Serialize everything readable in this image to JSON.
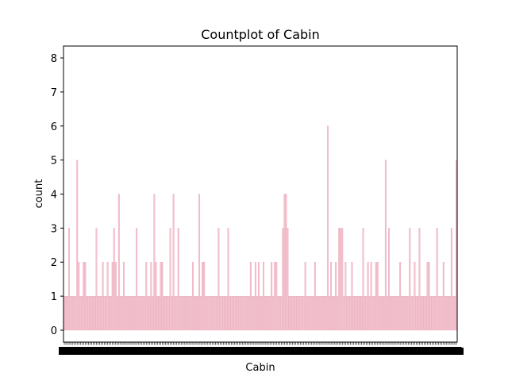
{
  "chart_data": {
    "type": "bar",
    "title": "Countplot of Cabin",
    "xlabel": "Cabin",
    "ylabel": "count",
    "ylim": [
      -0.35,
      8.35
    ],
    "yticks": [
      0,
      1,
      2,
      3,
      4,
      5,
      6,
      7,
      8
    ],
    "grid": false,
    "legend": "none",
    "bar_color": "#f4c2cf",
    "bar_edge_color": "#e49fb2",
    "xtick_labels_legible": false,
    "values": [
      1,
      1,
      1,
      3,
      1,
      1,
      1,
      1,
      5,
      2,
      1,
      1,
      2,
      2,
      1,
      1,
      1,
      1,
      1,
      1,
      3,
      1,
      1,
      1,
      2,
      1,
      1,
      2,
      1,
      1,
      2,
      3,
      2,
      1,
      4,
      1,
      1,
      2,
      1,
      1,
      1,
      1,
      1,
      1,
      1,
      3,
      1,
      1,
      1,
      1,
      1,
      2,
      1,
      1,
      2,
      1,
      4,
      2,
      1,
      1,
      2,
      2,
      1,
      1,
      1,
      1,
      3,
      1,
      4,
      1,
      1,
      3,
      1,
      1,
      1,
      1,
      1,
      1,
      1,
      1,
      2,
      1,
      1,
      1,
      4,
      1,
      2,
      2,
      1,
      1,
      1,
      1,
      1,
      1,
      1,
      1,
      3,
      1,
      1,
      1,
      1,
      1,
      3,
      1,
      1,
      1,
      1,
      1,
      1,
      1,
      1,
      1,
      1,
      1,
      1,
      1,
      2,
      1,
      1,
      2,
      1,
      2,
      1,
      1,
      2,
      1,
      1,
      1,
      1,
      2,
      1,
      2,
      2,
      1,
      1,
      1,
      3,
      4,
      4,
      3,
      1,
      1,
      1,
      1,
      1,
      1,
      1,
      1,
      1,
      1,
      2,
      1,
      1,
      1,
      1,
      1,
      2,
      1,
      1,
      1,
      1,
      1,
      1,
      1,
      6,
      1,
      2,
      1,
      1,
      2,
      1,
      3,
      3,
      3,
      1,
      2,
      1,
      1,
      1,
      2,
      1,
      1,
      1,
      1,
      1,
      1,
      3,
      1,
      1,
      2,
      1,
      2,
      1,
      1,
      2,
      2,
      1,
      1,
      1,
      1,
      5,
      1,
      3,
      1,
      1,
      1,
      1,
      1,
      1,
      2,
      1,
      1,
      1,
      1,
      1,
      3,
      1,
      1,
      2,
      1,
      1,
      3,
      1,
      1,
      1,
      1,
      2,
      2,
      1,
      1,
      1,
      1,
      3,
      1,
      1,
      1,
      2,
      1,
      1,
      1,
      1,
      3,
      1,
      1,
      5
    ]
  }
}
